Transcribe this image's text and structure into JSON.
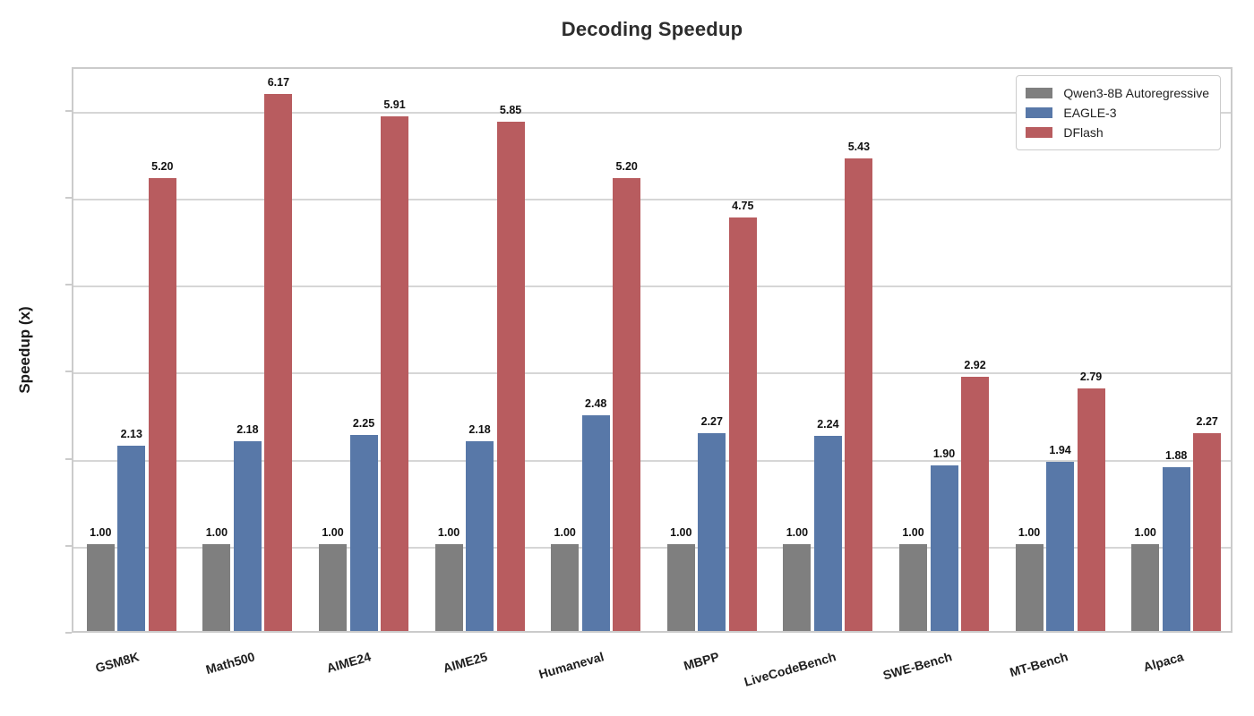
{
  "chart_data": {
    "type": "bar",
    "title": "Decoding Speedup",
    "xlabel": "",
    "ylabel": "Speedup (x)",
    "ylim": [
      0,
      6.5
    ],
    "yticks": [
      0,
      1,
      2,
      3,
      4,
      5,
      6
    ],
    "grid": "horizontal",
    "legend_position": "upper-right",
    "bar_value_labels": true,
    "value_label_decimals": 2,
    "categories": [
      "GSM8K",
      "Math500",
      "AIME24",
      "AIME25",
      "Humaneval",
      "MBPP",
      "LiveCodeBench",
      "SWE-Bench",
      "MT-Bench",
      "Alpaca"
    ],
    "series": [
      {
        "name": "Qwen3-8B Autoregressive",
        "color": "#7f7f7f",
        "values": [
          1.0,
          1.0,
          1.0,
          1.0,
          1.0,
          1.0,
          1.0,
          1.0,
          1.0,
          1.0
        ]
      },
      {
        "name": "EAGLE-3",
        "color": "#5878a8",
        "values": [
          2.13,
          2.18,
          2.25,
          2.18,
          2.48,
          2.27,
          2.24,
          1.9,
          1.94,
          1.88
        ]
      },
      {
        "name": "DFlash",
        "color": "#b85c5f",
        "values": [
          5.2,
          6.17,
          5.91,
          5.85,
          5.2,
          4.75,
          5.43,
          2.92,
          2.79,
          2.27
        ]
      }
    ],
    "colors": {
      "background": "#ffffff",
      "grid": "#d6d6d6",
      "plot_border": "#cbcbcb",
      "tick_text": "#1a1a1a",
      "title_text": "#2d2d2d"
    }
  }
}
